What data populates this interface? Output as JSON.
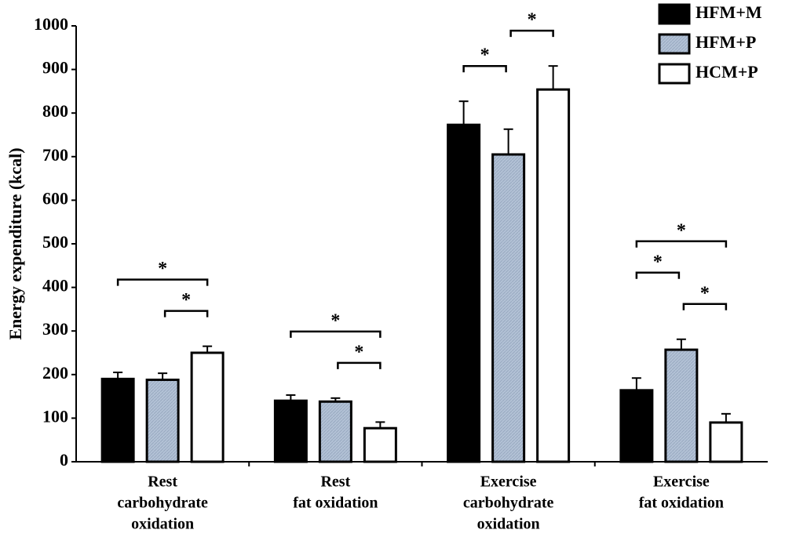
{
  "chart_data": {
    "type": "bar",
    "y_label": "Energy expenditure (kcal)",
    "categories": [
      [
        "Rest",
        "carbohydrate",
        "oxidation"
      ],
      [
        "Rest",
        "fat oxidation"
      ],
      [
        "Exercise",
        "carbohydrate",
        "oxidation"
      ],
      [
        "Exercise",
        "fat oxidation"
      ]
    ],
    "series": [
      {
        "name": "HFM+M",
        "color": "#000000",
        "values": [
          190,
          140,
          773,
          164
        ],
        "errors": [
          15,
          13,
          54,
          28
        ]
      },
      {
        "name": "HFM+P",
        "color": "#b3c2d6",
        "values": [
          188,
          138,
          705,
          257
        ],
        "errors": [
          15,
          8,
          58,
          24
        ]
      },
      {
        "name": "HCM+P",
        "color": "#ffffff",
        "values": [
          250,
          77,
          854,
          90
        ],
        "errors": [
          15,
          14,
          54,
          20
        ]
      }
    ],
    "significance": [
      {
        "category": 0,
        "from": 1,
        "to": 2,
        "label": "*"
      },
      {
        "category": 0,
        "from": 0,
        "to": 2,
        "label": "*"
      },
      {
        "category": 1,
        "from": 1,
        "to": 2,
        "label": "*"
      },
      {
        "category": 1,
        "from": 0,
        "to": 2,
        "label": "*"
      },
      {
        "category": 2,
        "from": 0,
        "to": 1,
        "label": "*"
      },
      {
        "category": 2,
        "from": 1,
        "to": 2,
        "label": "*"
      },
      {
        "category": 3,
        "from": 1,
        "to": 2,
        "label": "*"
      },
      {
        "category": 3,
        "from": 0,
        "to": 1,
        "label": "*"
      },
      {
        "category": 3,
        "from": 0,
        "to": 2,
        "label": "*"
      }
    ],
    "ylim": [
      0,
      1000
    ],
    "yticks": [
      0,
      100,
      200,
      300,
      400,
      500,
      600,
      700,
      800,
      900,
      1000
    ],
    "legend": "top-right"
  }
}
